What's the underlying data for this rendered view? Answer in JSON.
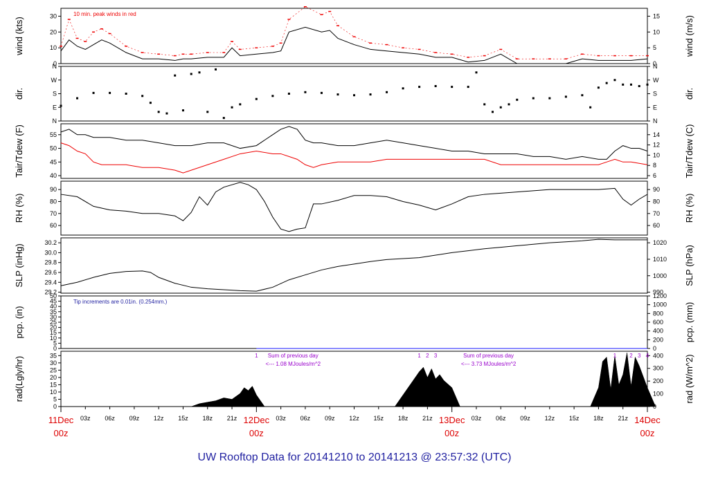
{
  "footer_title": "UW Rooftop Data for 20141210  to  20141213 @ 23:57:32  (UTC)",
  "colors": {
    "axis": "#000000",
    "red": "#ee0000",
    "blue": "#1a1aff",
    "dark_blue": "#1f1fa0",
    "purple": "#9900cc",
    "date_red": "#dd0000"
  },
  "chart_data": [
    {
      "type": "line",
      "ylabel": "wind (kts)",
      "ylabel_right": "wind (m/s)",
      "ylim": [
        0,
        35
      ],
      "yticks": [
        "0",
        "10",
        "20",
        "30"
      ],
      "yticks_right": [
        "0",
        "5",
        "10",
        "15"
      ],
      "annotation": "10 min. peak winds in red",
      "series": [
        {
          "role": "avg",
          "color": "#000000",
          "x": [
            0,
            1,
            2,
            3,
            4,
            5,
            6,
            8,
            10,
            12,
            14,
            15,
            16,
            18,
            20,
            21,
            22,
            24,
            26,
            27,
            28,
            30,
            32,
            33,
            34,
            36,
            38,
            40,
            42,
            44,
            46,
            48,
            50,
            52,
            54,
            56,
            58,
            60,
            62,
            64,
            66,
            68,
            70,
            72
          ],
          "values": [
            8,
            15,
            11,
            9,
            12,
            15,
            13,
            7,
            3,
            3,
            2,
            3,
            3,
            4,
            4,
            10,
            5,
            6,
            7,
            8,
            20,
            23,
            20,
            21,
            16,
            12,
            9,
            8,
            7,
            6,
            4,
            4,
            1,
            2,
            6,
            0,
            0,
            0,
            0,
            3,
            2,
            2,
            2,
            3
          ]
        },
        {
          "role": "peak",
          "color": "#ee0000",
          "x": [
            0,
            1,
            2,
            3,
            4,
            5,
            6,
            8,
            10,
            12,
            14,
            15,
            16,
            18,
            20,
            21,
            22,
            24,
            26,
            27,
            28,
            30,
            32,
            33,
            34,
            36,
            38,
            40,
            42,
            44,
            46,
            48,
            50,
            52,
            54,
            56,
            58,
            60,
            62,
            64,
            66,
            68,
            70,
            72
          ],
          "values": [
            11,
            28,
            16,
            14,
            20,
            22,
            19,
            11,
            7,
            6,
            5,
            6,
            6,
            7,
            7,
            14,
            9,
            10,
            11,
            13,
            28,
            36,
            31,
            33,
            24,
            17,
            13,
            12,
            10,
            9,
            7,
            6,
            4,
            5,
            9,
            3,
            3,
            3,
            3,
            6,
            5,
            5,
            5,
            5
          ]
        }
      ]
    },
    {
      "type": "scatter",
      "ylabel": "dir.",
      "ylabel_right": "dir.",
      "ylim": [
        0,
        360
      ],
      "yticks": [
        "N",
        "E",
        "S",
        "W",
        "N"
      ],
      "yticks_right": [
        "N",
        "E",
        "S",
        "W",
        "N"
      ],
      "series": [
        {
          "color": "#000000",
          "x": [
            0,
            2,
            4,
            6,
            8,
            10,
            11,
            12,
            13,
            14,
            15,
            16,
            17,
            18,
            19,
            20,
            21,
            22,
            24,
            26,
            28,
            30,
            32,
            34,
            36,
            38,
            40,
            42,
            44,
            46,
            48,
            50,
            51,
            52,
            53,
            54,
            55,
            56,
            58,
            60,
            62,
            64,
            65,
            66,
            67,
            68,
            69,
            70,
            71,
            72
          ],
          "values": [
            100,
            150,
            185,
            185,
            180,
            165,
            120,
            60,
            50,
            300,
            70,
            310,
            320,
            60,
            340,
            20,
            90,
            110,
            145,
            165,
            180,
            190,
            185,
            175,
            170,
            175,
            190,
            215,
            225,
            230,
            225,
            225,
            320,
            110,
            60,
            90,
            110,
            140,
            150,
            150,
            160,
            170,
            90,
            220,
            250,
            270,
            240,
            240,
            230,
            240
          ]
        }
      ]
    },
    {
      "type": "line",
      "ylabel": "Tair/Tdew (F)",
      "ylabel_right": "Tair/Tdew (C)",
      "ylim": [
        39,
        59
      ],
      "yticks": [
        "40",
        "45",
        "50",
        "55"
      ],
      "yticks_right": [
        "6",
        "8",
        "10",
        "12",
        "14"
      ],
      "series": [
        {
          "role": "tair",
          "color": "#000000",
          "x": [
            0,
            1,
            2,
            3,
            4,
            6,
            8,
            10,
            12,
            14,
            16,
            18,
            20,
            22,
            24,
            26,
            27,
            28,
            29,
            30,
            31,
            32,
            34,
            36,
            38,
            40,
            42,
            44,
            46,
            48,
            50,
            52,
            54,
            56,
            58,
            60,
            62,
            64,
            66,
            67,
            68,
            69,
            70,
            71,
            72
          ],
          "values": [
            56,
            57,
            55,
            55,
            54,
            54,
            53,
            53,
            52,
            51,
            51,
            52,
            52,
            50,
            51,
            55,
            57,
            58,
            57,
            53,
            52,
            52,
            51,
            51,
            52,
            53,
            52,
            51,
            50,
            49,
            49,
            48,
            48,
            48,
            47,
            47,
            46,
            47,
            46,
            46,
            49,
            51,
            50,
            50,
            49
          ]
        },
        {
          "role": "tdew",
          "color": "#ee0000",
          "x": [
            0,
            1,
            2,
            3,
            4,
            5,
            6,
            8,
            10,
            12,
            14,
            15,
            16,
            18,
            20,
            22,
            24,
            26,
            27,
            28,
            29,
            30,
            31,
            32,
            34,
            36,
            38,
            40,
            42,
            44,
            46,
            48,
            50,
            52,
            54,
            56,
            58,
            60,
            62,
            64,
            66,
            67,
            68,
            69,
            70,
            72
          ],
          "values": [
            52,
            51,
            49,
            48,
            45,
            44,
            44,
            44,
            43,
            43,
            42,
            41,
            42,
            44,
            46,
            48,
            49,
            48,
            48,
            47,
            46,
            44,
            43,
            44,
            45,
            45,
            45,
            46,
            46,
            46,
            46,
            46,
            46,
            46,
            44,
            44,
            44,
            44,
            44,
            44,
            44,
            45,
            46,
            45,
            45,
            44
          ]
        }
      ]
    },
    {
      "type": "line",
      "ylabel": "RH (%)",
      "ylabel_right": "RH (%)",
      "ylim": [
        52,
        97
      ],
      "yticks": [
        "60",
        "70",
        "80",
        "90"
      ],
      "yticks_right": [
        "60",
        "70",
        "80",
        "90"
      ],
      "series": [
        {
          "color": "#000000",
          "x": [
            0,
            2,
            4,
            6,
            8,
            10,
            12,
            14,
            15,
            16,
            17,
            18,
            19,
            20,
            22,
            23,
            24,
            25,
            26,
            27,
            28,
            29,
            30,
            31,
            32,
            34,
            36,
            38,
            40,
            42,
            44,
            46,
            48,
            50,
            52,
            54,
            56,
            58,
            60,
            62,
            64,
            66,
            68,
            69,
            70,
            71,
            72
          ],
          "values": [
            86,
            84,
            76,
            73,
            72,
            70,
            70,
            68,
            64,
            71,
            84,
            77,
            88,
            92,
            96,
            94,
            90,
            80,
            67,
            57,
            55,
            57,
            58,
            78,
            78,
            81,
            85,
            85,
            84,
            80,
            77,
            73,
            78,
            84,
            86,
            87,
            88,
            89,
            90,
            90,
            90,
            90,
            91,
            82,
            77,
            82,
            86
          ]
        }
      ]
    },
    {
      "type": "line",
      "ylabel": "SLP (inHg)",
      "ylabel_right": "SLP (hPa)",
      "ylim": [
        29.18,
        30.3
      ],
      "yticks": [
        "29.2",
        "29.4",
        "29.6",
        "29.8",
        "30.0",
        "30.2"
      ],
      "yticks_right": [
        "990",
        "1000",
        "1010",
        "1020"
      ],
      "series": [
        {
          "color": "#000000",
          "x": [
            0,
            2,
            4,
            6,
            8,
            10,
            11,
            12,
            14,
            16,
            18,
            20,
            22,
            24,
            26,
            28,
            30,
            32,
            34,
            36,
            38,
            40,
            42,
            44,
            46,
            48,
            50,
            52,
            54,
            56,
            58,
            60,
            62,
            64,
            66,
            68,
            70,
            72
          ],
          "values": [
            29.33,
            29.4,
            29.5,
            29.58,
            29.62,
            29.63,
            29.6,
            29.5,
            29.38,
            29.3,
            29.27,
            29.25,
            29.23,
            29.22,
            29.3,
            29.45,
            29.55,
            29.65,
            29.72,
            29.77,
            29.82,
            29.86,
            29.88,
            29.9,
            29.95,
            30.0,
            30.04,
            30.08,
            30.11,
            30.14,
            30.17,
            30.2,
            30.22,
            30.24,
            30.27,
            30.26,
            30.26,
            30.26
          ]
        }
      ]
    },
    {
      "type": "line",
      "ylabel": "pcp. (in)",
      "ylabel_right": "pcp. (mm)",
      "ylim": [
        0,
        50
      ],
      "yticks": [
        "0",
        "5",
        "10",
        "15",
        "20",
        "25",
        "30",
        "35",
        "40",
        "45",
        "50"
      ],
      "yticks_right": [
        "0",
        "200",
        "400",
        "600",
        "800",
        "1000",
        "1200"
      ],
      "annotation": "Tip increments are 0.01in. (0.254mm.)",
      "series": [
        {
          "color": "#1a1aff",
          "x": [
            24,
            72
          ],
          "values": [
            0,
            0
          ]
        }
      ]
    },
    {
      "type": "area",
      "ylabel": "rad(Lgly/hr)",
      "ylabel_right": "rad (W/m^2)",
      "ylim": [
        0,
        38
      ],
      "yticks": [
        "0",
        "5",
        "10",
        "15",
        "20",
        "25",
        "30",
        "35"
      ],
      "yticks_right": [
        "0",
        "100",
        "200",
        "300",
        "400"
      ],
      "annotations": [
        {
          "text": "1",
          "x": 24
        },
        {
          "text": "Sum of previous day",
          "x": 28.5
        },
        {
          "text": "<--- 1.08 MJoules/m^2",
          "x": 28.5
        },
        {
          "text": "1",
          "x": 44
        },
        {
          "text": "2",
          "x": 45
        },
        {
          "text": "3",
          "x": 46
        },
        {
          "text": "Sum of previous day",
          "x": 52.5
        },
        {
          "text": "<--- 3.73 MJoules/m^2",
          "x": 52.5
        },
        {
          "text": "1",
          "x": 68
        },
        {
          "text": "2",
          "x": 70
        },
        {
          "text": "3",
          "x": 71
        },
        {
          "text": "4",
          "x": 72
        }
      ],
      "series": [
        {
          "color": "#000000",
          "x": [
            16,
            17,
            18,
            19,
            20,
            21,
            22,
            22.5,
            23,
            23.5,
            24,
            25,
            41,
            42,
            43,
            44,
            44.5,
            45,
            45.5,
            46,
            46.5,
            47,
            48,
            49,
            65,
            66,
            66.5,
            67,
            67.5,
            68,
            68.5,
            69,
            69.5,
            70,
            70.5,
            71,
            72,
            73
          ],
          "values": [
            0,
            2,
            3,
            4,
            6,
            5,
            9,
            13,
            11,
            14,
            8,
            0,
            0,
            8,
            16,
            24,
            27,
            20,
            26,
            19,
            22,
            18,
            13,
            0,
            0,
            13,
            31,
            34,
            12,
            35,
            15,
            22,
            37,
            14,
            34,
            28,
            13,
            0
          ]
        }
      ]
    }
  ],
  "x_axis": {
    "hour_labels": [
      "03z",
      "06z",
      "09z",
      "12z",
      "15z",
      "18z",
      "21z",
      "03z",
      "06z",
      "09z",
      "12z",
      "15z",
      "18z",
      "21z",
      "03z",
      "06z",
      "09z",
      "12z",
      "15z",
      "18z",
      "21z"
    ],
    "day_labels": [
      {
        "date": "11Dec",
        "time": "00z"
      },
      {
        "date": "12Dec",
        "time": "00z"
      },
      {
        "date": "13Dec",
        "time": "00z"
      },
      {
        "date": "14Dec",
        "time": "00z"
      }
    ]
  }
}
